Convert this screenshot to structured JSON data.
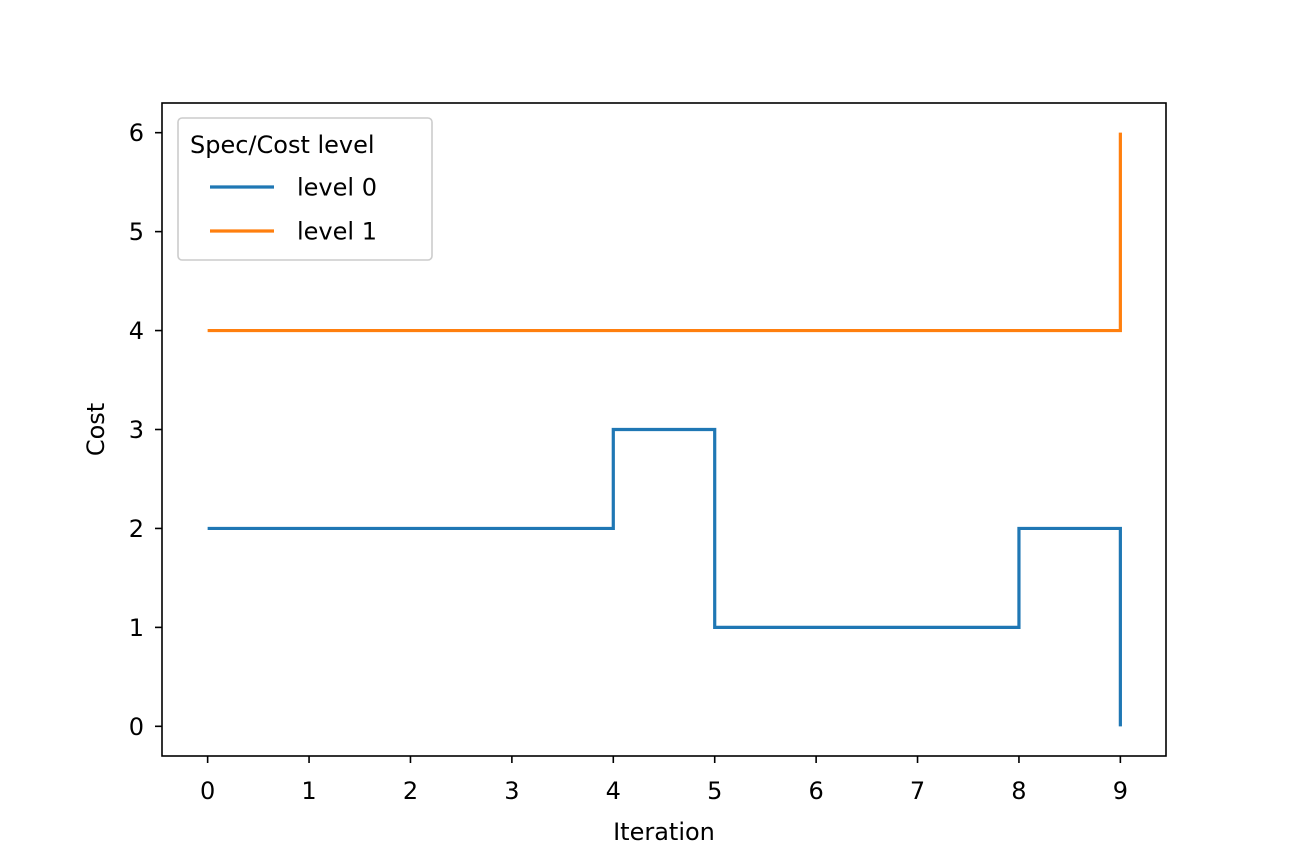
{
  "chart_data": {
    "type": "line",
    "drawstyle": "steps-post",
    "title": "",
    "xlabel": "Iteration",
    "ylabel": "Cost",
    "xlim": [
      -0.45,
      9.45
    ],
    "ylim": [
      -0.3,
      6.3
    ],
    "xticks": [
      0,
      1,
      2,
      3,
      4,
      5,
      6,
      7,
      8,
      9
    ],
    "yticks": [
      0,
      1,
      2,
      3,
      4,
      5,
      6
    ],
    "grid": false,
    "legend": {
      "title": "Spec/Cost level",
      "placement": "top-left"
    },
    "series": [
      {
        "name": "level 0",
        "color": "#1f77b4",
        "x": [
          0,
          1,
          2,
          3,
          4,
          5,
          6,
          7,
          8,
          9
        ],
        "y": [
          2,
          2,
          2,
          2,
          3,
          1,
          1,
          1,
          2,
          0
        ]
      },
      {
        "name": "level 1",
        "color": "#ff7f0e",
        "x": [
          0,
          1,
          2,
          3,
          4,
          5,
          6,
          7,
          8,
          9
        ],
        "y": [
          4,
          4,
          4,
          4,
          4,
          4,
          4,
          4,
          4,
          6
        ]
      }
    ]
  }
}
